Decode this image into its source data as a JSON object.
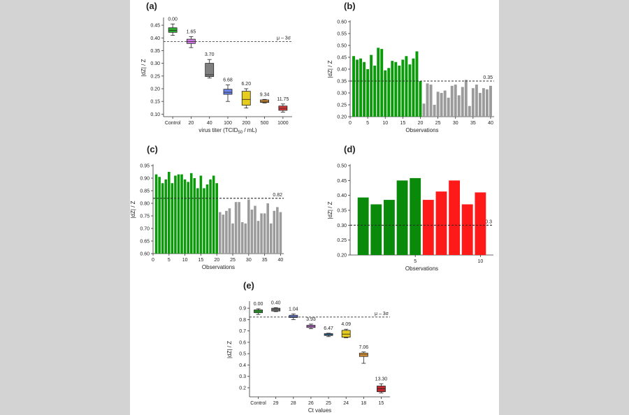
{
  "labels": {
    "a": "(a)",
    "b": "(b)",
    "c": "(c)",
    "d": "(d)",
    "e": "(e)"
  },
  "chart_data": [
    {
      "id": "a",
      "type": "box",
      "xlabel": "virus titer (TCID50 / mL)",
      "ylabel": "|dZ| / Z",
      "ylim": [
        0.09,
        0.475
      ],
      "yticks": [
        0.1,
        0.15,
        0.2,
        0.25,
        0.3,
        0.35,
        0.4,
        0.45
      ],
      "threshold": {
        "value": 0.386,
        "label": "μ – 3σ"
      },
      "categories": [
        "Control",
        "20",
        "40",
        "100",
        "200",
        "500",
        "1000"
      ],
      "boxes": [
        {
          "q1": 0.422,
          "median": 0.43,
          "q3": 0.44,
          "lo": 0.41,
          "hi": 0.455,
          "value_label": "0.00",
          "color": "#2fae2f"
        },
        {
          "q1": 0.378,
          "median": 0.386,
          "q3": 0.395,
          "lo": 0.362,
          "hi": 0.405,
          "value_label": "1.65",
          "color": "#d67be8"
        },
        {
          "q1": 0.248,
          "median": 0.255,
          "q3": 0.3,
          "lo": 0.242,
          "hi": 0.315,
          "value_label": "3.70",
          "color": "#808080"
        },
        {
          "q1": 0.178,
          "median": 0.186,
          "q3": 0.198,
          "lo": 0.15,
          "hi": 0.215,
          "value_label": "6.68",
          "color": "#6f86e8"
        },
        {
          "q1": 0.135,
          "median": 0.158,
          "q3": 0.19,
          "lo": 0.124,
          "hi": 0.2,
          "value_label": "6.20",
          "color": "#e6cc1e"
        },
        {
          "q1": 0.146,
          "median": 0.15,
          "q3": 0.156,
          "lo": 0.144,
          "hi": 0.158,
          "value_label": "9.34",
          "color": "#f0a23a"
        },
        {
          "q1": 0.115,
          "median": 0.123,
          "q3": 0.132,
          "lo": 0.108,
          "hi": 0.14,
          "value_label": "11.75",
          "color": "#dd3a3a"
        }
      ]
    },
    {
      "id": "b",
      "type": "bar",
      "xlabel": "Observations",
      "ylabel": "|dZ| / Z",
      "ylim": [
        0.2,
        0.6
      ],
      "yticks": [
        0.2,
        0.25,
        0.3,
        0.35,
        0.4,
        0.45,
        0.5,
        0.55,
        0.6
      ],
      "xticks": [
        0,
        5,
        10,
        15,
        20,
        25,
        30,
        35,
        40
      ],
      "xlim": [
        0,
        41
      ],
      "threshold": {
        "value": 0.35,
        "label": "0.35"
      },
      "x": [
        1,
        2,
        3,
        4,
        5,
        6,
        7,
        8,
        9,
        10,
        11,
        12,
        13,
        14,
        15,
        16,
        17,
        18,
        19,
        20,
        21,
        22,
        23,
        24,
        25,
        26,
        27,
        28,
        29,
        30,
        31,
        32,
        33,
        34,
        35,
        36,
        37,
        38,
        39,
        40
      ],
      "values": [
        0.455,
        0.44,
        0.445,
        0.43,
        0.4,
        0.46,
        0.415,
        0.49,
        0.485,
        0.395,
        0.405,
        0.435,
        0.43,
        0.415,
        0.44,
        0.455,
        0.42,
        0.445,
        0.475,
        0.35,
        0.255,
        0.34,
        0.335,
        0.25,
        0.305,
        0.3,
        0.31,
        0.28,
        0.33,
        0.335,
        0.29,
        0.325,
        0.355,
        0.245,
        0.32,
        0.335,
        0.3,
        0.32,
        0.315,
        0.33
      ],
      "colors": {
        "above": "#0a9a0a",
        "below": "#9b9b9b"
      },
      "split_after": 20
    },
    {
      "id": "c",
      "type": "bar",
      "xlabel": "Observations",
      "ylabel": "|dZ| / Z",
      "ylim": [
        0.6,
        0.95
      ],
      "yticks": [
        0.6,
        0.65,
        0.7,
        0.75,
        0.8,
        0.85,
        0.9,
        0.95
      ],
      "xticks": [
        0,
        5,
        10,
        15,
        20,
        25,
        30,
        35,
        40
      ],
      "xlim": [
        0,
        41
      ],
      "threshold": {
        "value": 0.82,
        "label": "0.82"
      },
      "x": [
        1,
        2,
        3,
        4,
        5,
        6,
        7,
        8,
        9,
        10,
        11,
        12,
        13,
        14,
        15,
        16,
        17,
        18,
        19,
        20,
        21,
        22,
        23,
        24,
        25,
        26,
        27,
        28,
        29,
        30,
        31,
        32,
        33,
        34,
        35,
        36,
        37,
        38,
        39,
        40
      ],
      "values": [
        0.915,
        0.905,
        0.88,
        0.895,
        0.925,
        0.88,
        0.91,
        0.915,
        0.915,
        0.895,
        0.885,
        0.92,
        0.9,
        0.86,
        0.91,
        0.86,
        0.875,
        0.895,
        0.91,
        0.88,
        0.765,
        0.755,
        0.77,
        0.78,
        0.72,
        0.805,
        0.805,
        0.725,
        0.72,
        0.815,
        0.775,
        0.79,
        0.73,
        0.76,
        0.76,
        0.8,
        0.72,
        0.77,
        0.785,
        0.765
      ],
      "colors": {
        "above": "#0a9a0a",
        "below": "#9b9b9b"
      },
      "split_after": 20
    },
    {
      "id": "d",
      "type": "bar",
      "xlabel": "Observations",
      "ylabel": "|dZ| / Z",
      "ylim": [
        0.2,
        0.5
      ],
      "yticks": [
        0.2,
        0.25,
        0.3,
        0.35,
        0.4,
        0.45,
        0.5
      ],
      "xticks": [
        5,
        10
      ],
      "xlim": [
        0,
        11
      ],
      "threshold": {
        "value": 0.3,
        "label": "0.3"
      },
      "x": [
        1,
        2,
        3,
        4,
        5,
        6,
        7,
        8,
        9,
        10
      ],
      "values": [
        0.393,
        0.37,
        0.385,
        0.45,
        0.458,
        0.385,
        0.413,
        0.45,
        0.37,
        0.41
      ],
      "colors": {
        "above": "#0a8a0a",
        "below": "#ff1a1a"
      },
      "split_after": 5
    },
    {
      "id": "e",
      "type": "box",
      "xlabel": "Ct values",
      "ylabel": "|dZ| / Z",
      "ylim": [
        0.12,
        0.95
      ],
      "yticks": [
        0.2,
        0.3,
        0.4,
        0.5,
        0.6,
        0.7,
        0.8,
        0.9
      ],
      "threshold": {
        "value": 0.822,
        "label": "μ – 3σ"
      },
      "categories": [
        "Control",
        "29",
        "28",
        "26",
        "25",
        "24",
        "18",
        "15"
      ],
      "boxes": [
        {
          "q1": 0.86,
          "median": 0.875,
          "q3": 0.885,
          "lo": 0.845,
          "hi": 0.895,
          "value_label": "0.00",
          "color": "#2fae2f"
        },
        {
          "q1": 0.875,
          "median": 0.888,
          "q3": 0.9,
          "lo": 0.87,
          "hi": 0.905,
          "value_label": "0.40",
          "color": "#808080"
        },
        {
          "q1": 0.818,
          "median": 0.826,
          "q3": 0.838,
          "lo": 0.8,
          "hi": 0.85,
          "value_label": "1.04",
          "color": "#6f86e8"
        },
        {
          "q1": 0.73,
          "median": 0.74,
          "q3": 0.75,
          "lo": 0.72,
          "hi": 0.76,
          "value_label": "3.93",
          "color": "#d67be8"
        },
        {
          "q1": 0.66,
          "median": 0.667,
          "q3": 0.676,
          "lo": 0.65,
          "hi": 0.68,
          "value_label": "6.47",
          "color": "#2e7db8"
        },
        {
          "q1": 0.645,
          "median": 0.672,
          "q3": 0.705,
          "lo": 0.64,
          "hi": 0.715,
          "value_label": "4.09",
          "color": "#e6cc1e"
        },
        {
          "q1": 0.475,
          "median": 0.49,
          "q3": 0.505,
          "lo": 0.415,
          "hi": 0.515,
          "value_label": "7.06",
          "color": "#f0a23a"
        },
        {
          "q1": 0.165,
          "median": 0.19,
          "q3": 0.215,
          "lo": 0.155,
          "hi": 0.235,
          "value_label": "13.30",
          "color": "#c1272d"
        }
      ]
    }
  ]
}
